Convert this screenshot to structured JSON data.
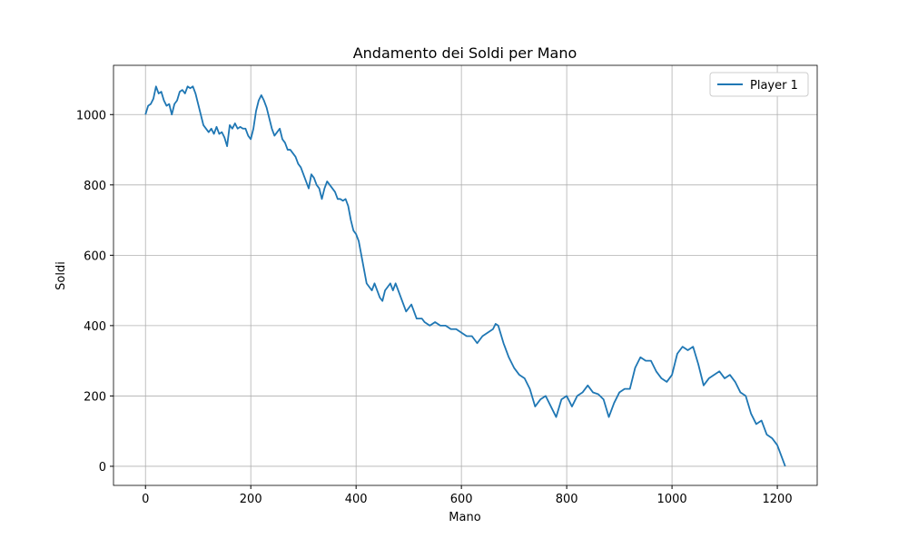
{
  "chart_data": {
    "type": "line",
    "title": "Andamento dei Soldi per Mano",
    "xlabel": "Mano",
    "ylabel": "Soldi",
    "x": [
      0,
      5,
      10,
      15,
      20,
      25,
      30,
      35,
      40,
      45,
      50,
      55,
      60,
      65,
      70,
      75,
      80,
      85,
      90,
      95,
      100,
      105,
      110,
      115,
      120,
      125,
      130,
      135,
      140,
      145,
      150,
      155,
      160,
      165,
      170,
      175,
      180,
      185,
      190,
      195,
      200,
      205,
      210,
      215,
      220,
      225,
      230,
      235,
      240,
      245,
      250,
      255,
      260,
      265,
      270,
      275,
      280,
      285,
      290,
      295,
      300,
      305,
      310,
      315,
      320,
      325,
      330,
      335,
      340,
      345,
      350,
      355,
      360,
      365,
      370,
      375,
      380,
      385,
      390,
      395,
      400,
      405,
      410,
      415,
      420,
      425,
      430,
      435,
      440,
      445,
      450,
      455,
      460,
      465,
      470,
      475,
      480,
      485,
      490,
      495,
      500,
      505,
      510,
      515,
      520,
      525,
      530,
      540,
      550,
      560,
      570,
      580,
      590,
      600,
      610,
      620,
      630,
      640,
      650,
      660,
      665,
      670,
      680,
      690,
      700,
      710,
      720,
      730,
      740,
      750,
      760,
      770,
      780,
      790,
      800,
      810,
      820,
      830,
      840,
      850,
      860,
      870,
      880,
      890,
      900,
      910,
      920,
      930,
      940,
      950,
      960,
      970,
      980,
      990,
      1000,
      1010,
      1020,
      1030,
      1040,
      1050,
      1060,
      1070,
      1080,
      1090,
      1100,
      1110,
      1120,
      1130,
      1140,
      1150,
      1160,
      1170,
      1180,
      1190,
      1200,
      1210,
      1215
    ],
    "series": [
      {
        "name": "Player 1",
        "color": "#1f77b4",
        "values": [
          1000,
          1025,
          1030,
          1045,
          1080,
          1060,
          1065,
          1040,
          1025,
          1030,
          1000,
          1030,
          1040,
          1065,
          1070,
          1060,
          1080,
          1075,
          1080,
          1060,
          1030,
          1000,
          970,
          960,
          950,
          960,
          945,
          965,
          945,
          950,
          935,
          910,
          970,
          960,
          975,
          960,
          965,
          960,
          960,
          940,
          930,
          960,
          1010,
          1040,
          1055,
          1040,
          1020,
          990,
          960,
          940,
          950,
          960,
          930,
          920,
          900,
          900,
          890,
          880,
          860,
          850,
          830,
          810,
          790,
          830,
          820,
          800,
          790,
          760,
          790,
          810,
          800,
          790,
          780,
          760,
          760,
          755,
          760,
          740,
          700,
          670,
          660,
          640,
          600,
          560,
          520,
          510,
          500,
          520,
          500,
          480,
          470,
          500,
          510,
          520,
          500,
          520,
          500,
          480,
          460,
          440,
          450,
          460,
          440,
          420,
          420,
          420,
          410,
          400,
          410,
          400,
          400,
          390,
          390,
          380,
          370,
          370,
          350,
          370,
          380,
          390,
          405,
          400,
          350,
          310,
          280,
          260,
          250,
          220,
          170,
          190,
          200,
          170,
          140,
          190,
          200,
          170,
          200,
          210,
          230,
          210,
          205,
          190,
          140,
          180,
          210,
          220,
          220,
          280,
          310,
          300,
          300,
          270,
          250,
          240,
          260,
          320,
          340,
          330,
          340,
          290,
          230,
          250,
          260,
          270,
          250,
          260,
          240,
          210,
          200,
          150,
          120,
          130,
          90,
          80,
          60,
          20,
          0
        ]
      }
    ],
    "xlim": [
      -60.75,
      1275.75
    ],
    "ylim": [
      -54.3,
      1140
    ],
    "xticks": [
      0,
      200,
      400,
      600,
      800,
      1000,
      1200
    ],
    "yticks": [
      0,
      200,
      400,
      600,
      800,
      1000
    ],
    "grid": true,
    "legend": "upper right"
  }
}
